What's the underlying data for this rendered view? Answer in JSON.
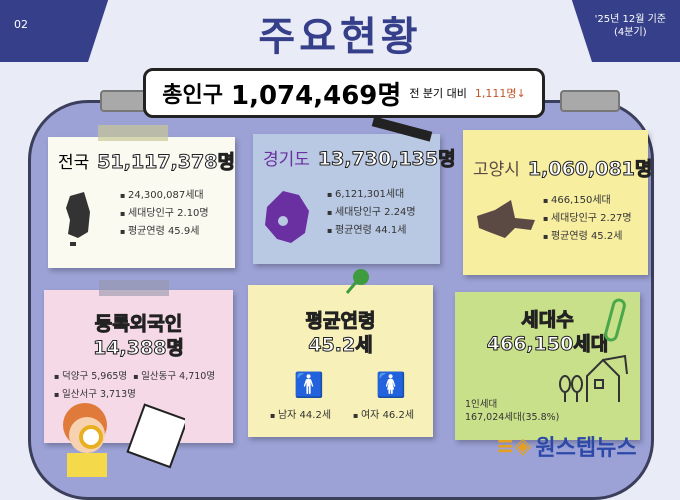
{
  "header": {
    "page_number": "02",
    "title": "주요현황",
    "date_line1": "'25년 12월 기준",
    "date_line2": "(4분기)"
  },
  "total": {
    "label": "총인구",
    "value": "1,074,469명",
    "compare_label": "전 분기 대비",
    "change": "1,111명↓"
  },
  "national": {
    "name": "전국",
    "population": "51,117,378명",
    "items": [
      "24,300,087세대",
      "세대당인구 2.10명",
      "평균연령 45.9세"
    ]
  },
  "gyeonggi": {
    "name": "경기도",
    "population": "13,730,135명",
    "items": [
      "6,121,301세대",
      "세대당인구 2.24명",
      "평균연령 44.1세"
    ]
  },
  "goyang": {
    "name": "고양시",
    "population": "1,060,081명",
    "items": [
      "466,150세대",
      "세대당인구 2.27명",
      "평균연령 45.2세"
    ]
  },
  "foreigners": {
    "title": "등록외국인",
    "value": "14,388명",
    "items": [
      "덕양구 5,965명",
      "일산동구 4,710명",
      "일산서구 3,713명"
    ]
  },
  "avg_age": {
    "title": "평균연령",
    "value": "45.2세",
    "male": "남자 44.2세",
    "female": "여자 46.2세"
  },
  "households": {
    "title": "세대수",
    "value": "466,150세대",
    "single_label": "1인세대",
    "single_value": "167,024세대(35.8%)"
  },
  "logo": "원스텝뉴스",
  "colors": {
    "navy": "#36408a",
    "board": "#9ca2d6",
    "card_national": "#fbfaf0",
    "card_gyeonggi": "#b9c9e3",
    "card_goyang": "#f7eea0",
    "card_foreign": "#f5d9e6",
    "card_age": "#f7f0b8",
    "card_house": "#c9e08a",
    "gyeonggi_map": "#6a2fa0",
    "goyang_map": "#5b4a44"
  }
}
